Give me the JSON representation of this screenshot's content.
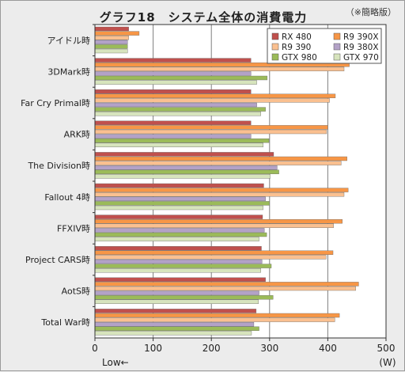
{
  "chart_data": {
    "type": "bar",
    "orientation": "horizontal",
    "title": "グラフ18　システム全体の消費電力",
    "note": "（※簡略版）",
    "categories": [
      "アイドル時",
      "3DMark時",
      "Far Cry Primal時",
      "ARK時",
      "The Division時",
      "Fallout 4時",
      "FFXIV時",
      "Project CARS時",
      "AotS時",
      "Total War時"
    ],
    "series": [
      {
        "name": "RX 480",
        "color": "#c0504d",
        "values": [
          58,
          268,
          268,
          268,
          307,
          290,
          288,
          286,
          293,
          277
        ]
      },
      {
        "name": "R9 390X",
        "color": "#f79646",
        "values": [
          76,
          437,
          413,
          400,
          433,
          435,
          425,
          409,
          453,
          420
        ]
      },
      {
        "name": "R9 390",
        "color": "#fac090",
        "values": [
          58,
          428,
          403,
          398,
          423,
          428,
          410,
          397,
          448,
          412
        ]
      },
      {
        "name": "R9 380X",
        "color": "#b3a2c7",
        "values": [
          56,
          268,
          278,
          268,
          313,
          293,
          291,
          287,
          282,
          273
        ]
      },
      {
        "name": "GTX 980",
        "color": "#9bbb59",
        "values": [
          56,
          296,
          293,
          299,
          316,
          300,
          295,
          303,
          306,
          282
        ]
      },
      {
        "name": "GTX 970",
        "color": "#d7e4bd",
        "values": [
          56,
          278,
          285,
          289,
          301,
          289,
          282,
          285,
          281,
          269
        ]
      }
    ],
    "xlim": [
      0,
      500
    ],
    "xticks": [
      0,
      100,
      200,
      300,
      400,
      500
    ],
    "x_left_label": "Low←",
    "unit": "(W)",
    "grid": true,
    "legend_position": "top-right",
    "colors": {
      "background": "#ececec",
      "plot": "#ffffff",
      "grid": "#7f7f7f",
      "axis": "#333333"
    }
  }
}
